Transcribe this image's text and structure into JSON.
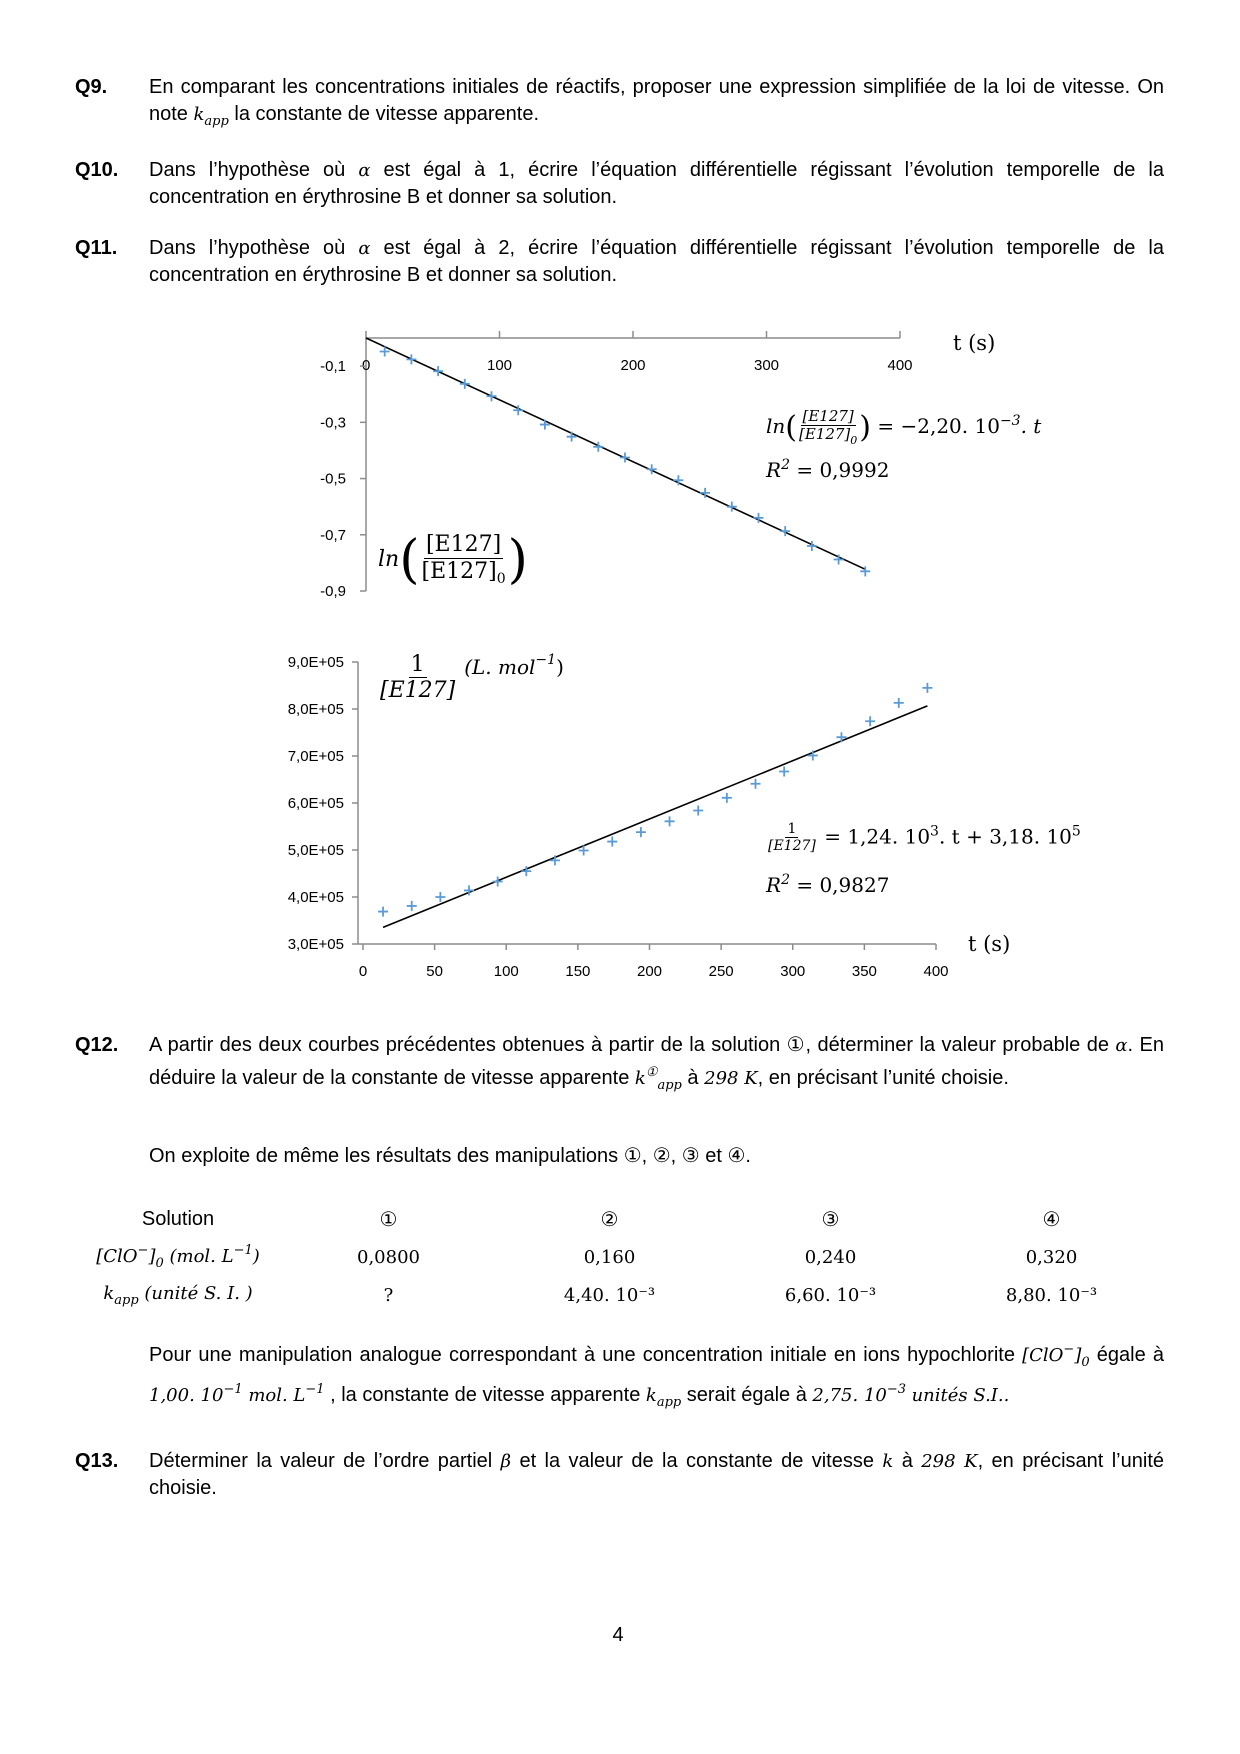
{
  "questions": {
    "q9": {
      "label": "Q9.",
      "text": [
        [
          "t",
          "En comparant les concentrations initiales de réactifs, proposer une expression simplifiée de la loi de vitesse. On note "
        ],
        [
          "m",
          "k"
        ],
        [
          "sub",
          "app"
        ],
        [
          "t",
          " la constante de vitesse apparente."
        ]
      ]
    },
    "q10": {
      "label": "Q10.",
      "text": [
        [
          "t",
          "Dans l’hypothèse où "
        ],
        [
          "m",
          "α"
        ],
        [
          "t",
          " est égal à 1, écrire l’équation différentielle régissant l’évolution temporelle de la concentration en érythrosine B et donner sa solution."
        ]
      ]
    },
    "q11": {
      "label": "Q11.",
      "text": [
        [
          "t",
          "Dans l’hypothèse où "
        ],
        [
          "m",
          "α"
        ],
        [
          "t",
          " est égal à 2, écrire l’équation différentielle régissant l’évolution temporelle de la concentration en érythrosine B et donner sa solution."
        ]
      ]
    },
    "q12": {
      "label": "Q12.",
      "text": [
        [
          "t",
          "A partir des deux courbes précédentes obtenues à partir de la solution ①, déterminer la valeur probable de "
        ],
        [
          "m",
          "α"
        ],
        [
          "t",
          ". En déduire la valeur de la constante de vitesse apparente "
        ],
        [
          "m",
          "k"
        ],
        [
          "sup",
          "①"
        ],
        [
          "sub",
          "app"
        ],
        [
          "t",
          " à "
        ],
        [
          "m",
          "298 K"
        ],
        [
          "t",
          ", en précisant l’unité choisie."
        ]
      ]
    },
    "intro": {
      "text": [
        [
          "t",
          "On exploite de même les résultats des manipulations ①, ②, ③ et ④."
        ]
      ]
    },
    "para": {
      "text": [
        [
          "t",
          "Pour une manipulation analogue correspondant à une concentration initiale en ions hypochlorite "
        ],
        [
          "m",
          "[ClO"
        ],
        [
          "sup",
          "−"
        ],
        [
          "m",
          "]"
        ],
        [
          "sub",
          "0"
        ],
        [
          "t",
          " égale à "
        ],
        [
          "m",
          "1,00. 10"
        ],
        [
          "sup",
          "−1"
        ],
        [
          "m",
          " mol. L"
        ],
        [
          "sup",
          "−1"
        ],
        [
          "t",
          " , la constante de vitesse apparente "
        ],
        [
          "m",
          "k"
        ],
        [
          "sub",
          "app"
        ],
        [
          "t",
          " serait égale à "
        ],
        [
          "m",
          "2,75. 10"
        ],
        [
          "sup",
          "−3"
        ],
        [
          "t",
          " "
        ],
        [
          "m",
          "unités S.I.."
        ]
      ]
    },
    "q13": {
      "label": "Q13.",
      "text": [
        [
          "t",
          "Déterminer la valeur de l’ordre partiel  "
        ],
        [
          "m",
          "β"
        ],
        [
          "t",
          " et la valeur de la constante de vitesse "
        ],
        [
          "m",
          "k"
        ],
        [
          "t",
          " à "
        ],
        [
          "m",
          "298 K"
        ],
        [
          "t",
          ", en précisant l’unité choisie."
        ]
      ]
    }
  },
  "table": {
    "header": {
      "label": "Solution",
      "cols": [
        "①",
        "②",
        "③",
        "④"
      ]
    },
    "rows": [
      {
        "label": [
          [
            "m",
            "[ClO"
          ],
          [
            "sup",
            "−"
          ],
          [
            "m",
            "]"
          ],
          [
            "sub",
            "0"
          ],
          [
            "m",
            " (mol. L"
          ],
          [
            "sup",
            "−1"
          ],
          [
            "m",
            ")"
          ]
        ],
        "values": [
          "0,0800",
          "0,160",
          "0,240",
          "0,320"
        ]
      },
      {
        "label": [
          [
            "m",
            "k"
          ],
          [
            "sub",
            "app"
          ],
          [
            "m",
            " (unité S. I. )"
          ]
        ],
        "values": [
          "?",
          "4,40. 10⁻³",
          "6,60. 10⁻³",
          "8,80. 10⁻³"
        ]
      }
    ]
  },
  "chart_data": [
    {
      "type": "scatter",
      "xlabel": "t (s)",
      "ylabel": {
        "fn": "ln",
        "num": "[E127]",
        "den": "[E127]",
        "den_sub": "0"
      },
      "xlim": [
        0,
        400
      ],
      "ylim": [
        -0.9,
        0
      ],
      "x_ticks": [
        "0",
        "100",
        "200",
        "300",
        "400"
      ],
      "x_tick_values": [
        0,
        100,
        200,
        300,
        400
      ],
      "y_ticks": [
        "-0,1",
        "-0,3",
        "-0,5",
        "-0,7",
        "-0,9"
      ],
      "y_tick_values": [
        -0.1,
        -0.3,
        -0.5,
        -0.7,
        -0.9
      ],
      "x_axis_position": "top",
      "marker_color": "#5B9BD5",
      "x": [
        14,
        34,
        54,
        74,
        94,
        114,
        134,
        154,
        174,
        194,
        214,
        234,
        254,
        274,
        294,
        314,
        334,
        354,
        374
      ],
      "y": [
        -0.048,
        -0.076,
        -0.118,
        -0.163,
        -0.207,
        -0.257,
        -0.308,
        -0.351,
        -0.387,
        -0.425,
        -0.467,
        -0.506,
        -0.551,
        -0.6,
        -0.64,
        -0.687,
        -0.74,
        -0.788,
        -0.83
      ],
      "trendline": {
        "slope": -0.0022,
        "intercept": 0,
        "x_range": [
          0,
          374
        ]
      },
      "equation": {
        "fn": "ln",
        "num": "[E127]",
        "den": "[E127]",
        "den_sub": "0",
        "rhs": " = −2,20. 10",
        "rhs_sup": "−3",
        "rhs_end": ". t",
        "r2_label": "R",
        "r2_sup": "2",
        "r2_value": " = 0,9992"
      }
    },
    {
      "type": "scatter",
      "xlabel": "t (s)",
      "ylabel": {
        "num": "1",
        "den": "[E127]",
        "unit": "(L. mol",
        "unit_sup": "−1",
        "unit_end": ")"
      },
      "xlim": [
        0,
        400
      ],
      "ylim": [
        300000,
        900000
      ],
      "x_ticks": [
        "0",
        "50",
        "100",
        "150",
        "200",
        "250",
        "300",
        "350",
        "400"
      ],
      "x_tick_values": [
        0,
        50,
        100,
        150,
        200,
        250,
        300,
        350,
        400
      ],
      "y_ticks": [
        "3,0E+05",
        "4,0E+05",
        "5,0E+05",
        "6,0E+05",
        "7,0E+05",
        "8,0E+05",
        "9,0E+05"
      ],
      "y_tick_values": [
        300000,
        400000,
        500000,
        600000,
        700000,
        800000,
        900000
      ],
      "x_axis_position": "bottom",
      "marker_color": "#5B9BD5",
      "x": [
        14,
        34,
        54,
        74,
        94,
        114,
        134,
        154,
        174,
        194,
        214,
        234,
        254,
        274,
        294,
        314,
        334,
        354,
        374,
        394
      ],
      "y": [
        369000,
        381000,
        400000,
        414000,
        433000,
        455000,
        478000,
        499000,
        518000,
        538000,
        561000,
        584000,
        611000,
        641000,
        667000,
        701000,
        740000,
        774000,
        813000,
        845000
      ],
      "trendline": {
        "slope": 1240,
        "intercept": 318000,
        "x_range": [
          14,
          394
        ]
      },
      "equation": {
        "num": "1",
        "den": "[E127]",
        "rhs": " = 1,24. 10",
        "rhs_sup": "3",
        "rhs_mid": ". t + 3,18. 10",
        "rhs_sup2": "5",
        "r2_label": "R",
        "r2_sup": "2",
        "r2_value": " = 0,9827"
      }
    }
  ],
  "page_number": "4"
}
